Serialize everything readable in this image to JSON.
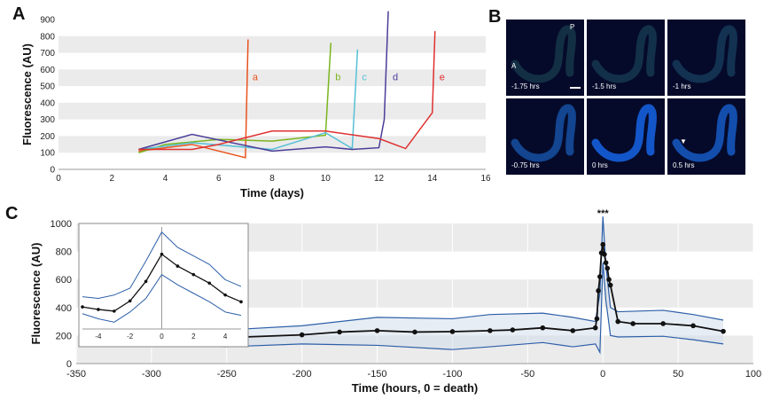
{
  "panels": {
    "a": "A",
    "b": "B",
    "c": "C"
  },
  "chart_data": [
    {
      "type": "line",
      "ylabel": "Fluorescence (AU)",
      "xlabel": "Time (days)",
      "xlim": [
        0,
        16
      ],
      "ylim": [
        0,
        900
      ],
      "xticks": [
        0,
        2,
        4,
        6,
        8,
        10,
        12,
        14,
        16
      ],
      "yticks": [
        0,
        100,
        200,
        300,
        400,
        500,
        600,
        700,
        800,
        900
      ],
      "grid": "horizontal bands",
      "series": [
        {
          "name": "a",
          "color": "#e8531f",
          "x": [
            3,
            5,
            7,
            7.1
          ],
          "y": [
            110,
            150,
            70,
            780
          ]
        },
        {
          "name": "b",
          "color": "#7ab51d",
          "x": [
            3,
            4,
            6,
            8,
            10,
            10.2
          ],
          "y": [
            100,
            150,
            180,
            170,
            205,
            760
          ]
        },
        {
          "name": "c",
          "color": "#56c0d6",
          "x": [
            3,
            5,
            8,
            10,
            11,
            11.2
          ],
          "y": [
            120,
            160,
            120,
            220,
            125,
            720
          ]
        },
        {
          "name": "d",
          "color": "#4a3d99",
          "x": [
            3,
            5,
            8,
            10,
            11,
            12,
            12.2,
            12.35
          ],
          "y": [
            120,
            210,
            110,
            135,
            120,
            130,
            300,
            950
          ]
        },
        {
          "name": "e",
          "color": "#e03030",
          "x": [
            3,
            5,
            6,
            8,
            10,
            12,
            13,
            14,
            14.1
          ],
          "y": [
            120,
            120,
            150,
            230,
            230,
            185,
            125,
            340,
            830
          ]
        }
      ]
    },
    {
      "type": "line",
      "ylabel": "Fluorescence (AU)",
      "xlabel": "Time (hours, 0 = death)",
      "xlim": [
        -350,
        100
      ],
      "ylim": [
        0,
        1000
      ],
      "xticks": [
        -350,
        -300,
        -250,
        -200,
        -150,
        -100,
        -50,
        0,
        50,
        100
      ],
      "yticks": [
        0,
        200,
        400,
        600,
        800,
        1000
      ],
      "annotation": "***",
      "series": [
        {
          "role": "mean",
          "x": [
            -300,
            -250,
            -200,
            -175,
            -150,
            -125,
            -100,
            -75,
            -60,
            -40,
            -20,
            -5,
            -4,
            -3,
            -2,
            -1,
            0,
            1,
            2,
            3,
            4,
            5,
            10,
            20,
            40,
            60,
            80
          ],
          "y": [
            180,
            185,
            205,
            225,
            235,
            225,
            228,
            235,
            240,
            255,
            235,
            255,
            320,
            520,
            620,
            790,
            850,
            780,
            720,
            680,
            600,
            560,
            300,
            285,
            285,
            270,
            230
          ]
        },
        {
          "role": "upper",
          "x": [
            -300,
            -250,
            -200,
            -150,
            -100,
            -75,
            -40,
            -20,
            -5,
            -2,
            0,
            2,
            5,
            10,
            40,
            60,
            80
          ],
          "y": [
            230,
            240,
            270,
            330,
            320,
            350,
            360,
            330,
            300,
            500,
            1050,
            700,
            400,
            370,
            380,
            350,
            310
          ]
        },
        {
          "role": "lower",
          "x": [
            -300,
            -250,
            -200,
            -150,
            -100,
            -75,
            -40,
            -20,
            -5,
            -2,
            0,
            2,
            5,
            10,
            40,
            60,
            80
          ],
          "y": [
            130,
            120,
            140,
            130,
            100,
            120,
            150,
            120,
            140,
            80,
            720,
            450,
            200,
            190,
            195,
            170,
            140
          ]
        }
      ],
      "inset": {
        "xlim": [
          -5,
          5
        ],
        "ylim": [
          400,
          1000
        ],
        "xticks": [
          -4,
          -2,
          0,
          2,
          4
        ],
        "mean": {
          "x": [
            -5,
            -4,
            -3,
            -2,
            -1,
            0,
            1,
            2,
            3,
            4,
            5
          ],
          "y": [
            530,
            515,
            505,
            565,
            680,
            840,
            770,
            720,
            670,
            600,
            560
          ]
        },
        "upper": {
          "x": [
            -5,
            -4,
            -3,
            -2,
            -1,
            0,
            1,
            2,
            3,
            4,
            5
          ],
          "y": [
            590,
            580,
            600,
            640,
            800,
            970,
            880,
            830,
            780,
            690,
            650
          ]
        },
        "lower": {
          "x": [
            -5,
            -4,
            -3,
            -2,
            -1,
            0,
            1,
            2,
            3,
            4,
            5
          ],
          "y": [
            490,
            460,
            440,
            500,
            580,
            720,
            660,
            610,
            560,
            500,
            480
          ]
        }
      }
    }
  ],
  "images": {
    "tiles": [
      {
        "label": "-1.75 hrs",
        "level": 0.15
      },
      {
        "label": "-1.5 hrs",
        "level": 0.18
      },
      {
        "label": "-1 hrs",
        "level": 0.22
      },
      {
        "label": "-0.75 hrs",
        "level": 0.55
      },
      {
        "label": "0 hrs",
        "level": 0.85
      },
      {
        "label": "0.5 hrs",
        "level": 0.7
      }
    ],
    "anterior_label": "A",
    "posterior_label": "P"
  }
}
